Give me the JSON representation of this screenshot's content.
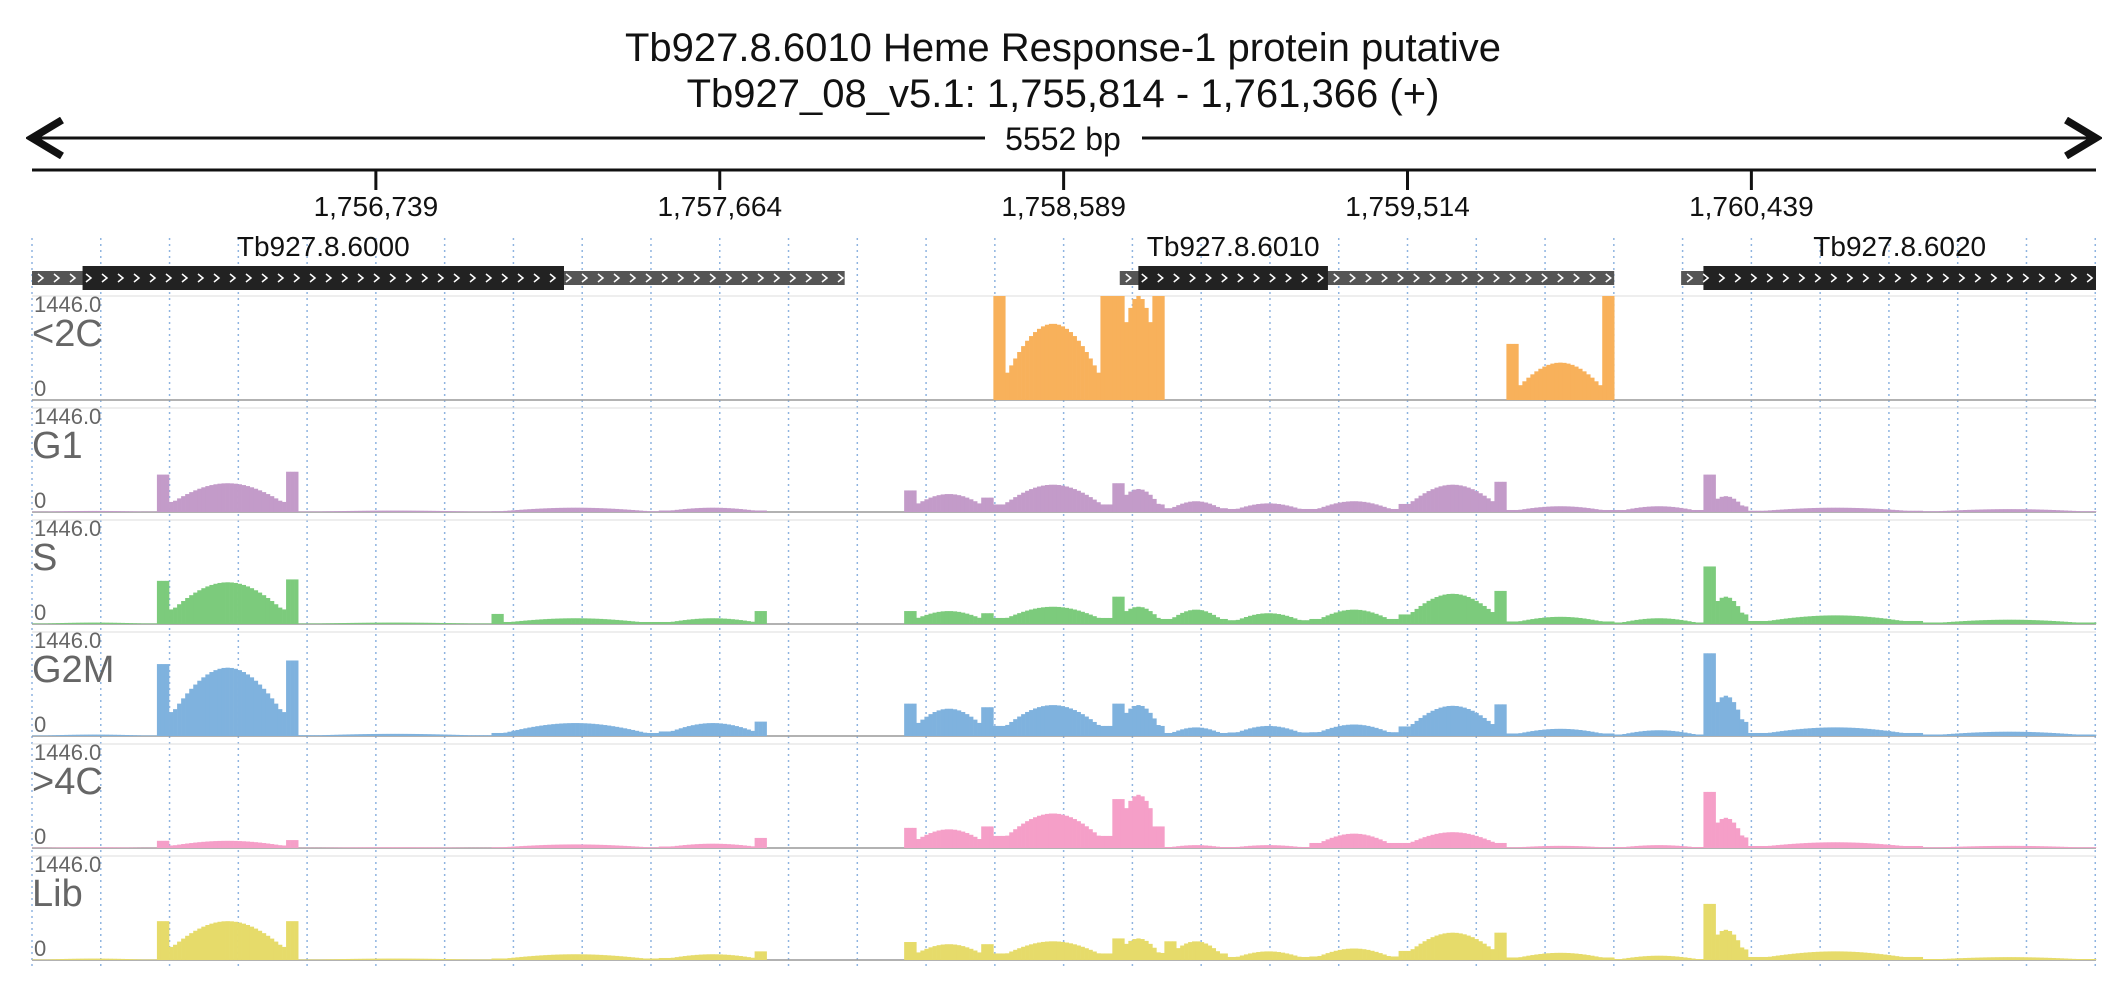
{
  "header": {
    "title_line1": "Tb927.8.6010  Heme Response-1 protein  putative",
    "title_line2": "Tb927_08_v5.1: 1,755,814 - 1,761,366 (+)",
    "span_label": "5552 bp"
  },
  "colors": {
    "axis": "#111111",
    "grid": "#8fb4e0",
    "gene_exon": "#222222",
    "gene_utr": "#555555",
    "track_label": "#666666"
  },
  "ruler": {
    "range_bp": [
      1755814,
      1761366
    ],
    "ticks": [
      {
        "pos": 1756739,
        "label": "1,756,739"
      },
      {
        "pos": 1757664,
        "label": "1,757,664"
      },
      {
        "pos": 1758589,
        "label": "1,758,589"
      },
      {
        "pos": 1759514,
        "label": "1,759,514"
      },
      {
        "pos": 1760439,
        "label": "1,760,439"
      }
    ]
  },
  "genes": [
    {
      "name": "Tb927.8.6000",
      "utr_start": 1755814,
      "cds_start": 1755950,
      "cds_end": 1757245,
      "utr_end": 1758000
    },
    {
      "name": "Tb927.8.6010",
      "utr_start": 1758740,
      "cds_start": 1758790,
      "cds_end": 1759300,
      "utr_end": 1760070
    },
    {
      "name": "Tb927.8.6020",
      "utr_start": 1760250,
      "cds_start": 1760310,
      "cds_end": 1761366,
      "utr_end": 1761366
    }
  ],
  "chart_data": {
    "type": "area",
    "x_range": [
      1755814,
      1761366
    ],
    "ylim": [
      0,
      1446.0
    ],
    "y_max_label": "1446.0",
    "y_min_label": "0",
    "segments": [
      [
        1755814,
        1756150
      ],
      [
        1756150,
        1756530
      ],
      [
        1756530,
        1757050
      ],
      [
        1757050,
        1757500
      ],
      [
        1757500,
        1757790
      ],
      [
        1757790,
        1758160
      ],
      [
        1758160,
        1758400
      ],
      [
        1758400,
        1758720
      ],
      [
        1758720,
        1758860
      ],
      [
        1758860,
        1759030
      ],
      [
        1759030,
        1759250
      ],
      [
        1759250,
        1759490
      ],
      [
        1759490,
        1759780
      ],
      [
        1759780,
        1760070
      ],
      [
        1760070,
        1760310
      ],
      [
        1760310,
        1760430
      ],
      [
        1760430,
        1760900
      ],
      [
        1760900,
        1761366
      ]
    ],
    "series": [
      {
        "name": "<2C",
        "color": "#f8b15b",
        "values": [
          0,
          0,
          0,
          0,
          0,
          0,
          0,
          1446,
          1446,
          0,
          0,
          0,
          0,
          0,
          0,
          0,
          0,
          0
        ],
        "peaks": [
          0,
          0,
          0,
          0,
          0,
          0,
          0,
          1060,
          1446,
          0,
          0,
          0,
          0,
          520,
          0,
          0,
          0,
          0
        ],
        "edges": [
          [
            0,
            0
          ],
          [
            0,
            0
          ],
          [
            0,
            0
          ],
          [
            0,
            0
          ],
          [
            0,
            0
          ],
          [
            0,
            0
          ],
          [
            0,
            0
          ],
          [
            1446,
            1446
          ],
          [
            1446,
            1446
          ],
          [
            0,
            0
          ],
          [
            0,
            0
          ],
          [
            0,
            0
          ],
          [
            0,
            0
          ],
          [
            780,
            1446
          ],
          [
            0,
            0
          ],
          [
            0,
            0
          ],
          [
            0,
            0
          ],
          [
            0,
            0
          ]
        ]
      },
      {
        "name": "G1",
        "color": "#c39bc9",
        "values": [
          15,
          480,
          20,
          30,
          180,
          0,
          280,
          300,
          300,
          150,
          180,
          120,
          320,
          110,
          90,
          500,
          50,
          30
        ],
        "peaks": [
          15,
          400,
          20,
          60,
          60,
          0,
          250,
          380,
          320,
          150,
          120,
          150,
          380,
          80,
          80,
          220,
          60,
          40
        ],
        "edges": [
          [
            0,
            0
          ],
          [
            520,
            560
          ],
          [
            0,
            0
          ],
          [
            0,
            0
          ],
          [
            0,
            0
          ],
          [
            0,
            0
          ],
          [
            300,
            200
          ],
          [
            0,
            0
          ],
          [
            400,
            0
          ],
          [
            0,
            0
          ],
          [
            0,
            0
          ],
          [
            0,
            0
          ],
          [
            0,
            420
          ],
          [
            0,
            0
          ],
          [
            0,
            0
          ],
          [
            520,
            0
          ],
          [
            0,
            0
          ],
          [
            0,
            0
          ]
        ]
      },
      {
        "name": "S",
        "color": "#7ccb7c",
        "values": [
          20,
          600,
          20,
          80,
          180,
          0,
          200,
          250,
          200,
          200,
          150,
          200,
          380,
          120,
          60,
          800,
          120,
          60
        ],
        "peaks": [
          20,
          580,
          20,
          80,
          80,
          0,
          180,
          240,
          240,
          200,
          150,
          200,
          420,
          100,
          80,
          380,
          120,
          60
        ],
        "edges": [
          [
            0,
            0
          ],
          [
            600,
            620
          ],
          [
            0,
            0
          ],
          [
            140,
            0
          ],
          [
            0,
            180
          ],
          [
            0,
            0
          ],
          [
            180,
            150
          ],
          [
            0,
            0
          ],
          [
            380,
            0
          ],
          [
            0,
            0
          ],
          [
            0,
            0
          ],
          [
            0,
            0
          ],
          [
            0,
            460
          ],
          [
            0,
            0
          ],
          [
            0,
            0
          ],
          [
            800,
            0
          ],
          [
            0,
            0
          ],
          [
            0,
            0
          ]
        ]
      },
      {
        "name": "G2M",
        "color": "#7fb2de",
        "values": [
          20,
          980,
          30,
          120,
          180,
          0,
          450,
          400,
          400,
          120,
          140,
          150,
          380,
          100,
          60,
          1100,
          120,
          60
        ],
        "peaks": [
          20,
          950,
          30,
          180,
          180,
          0,
          380,
          430,
          430,
          120,
          140,
          160,
          420,
          100,
          80,
          560,
          120,
          60
        ],
        "edges": [
          [
            0,
            0
          ],
          [
            1000,
            1050
          ],
          [
            0,
            0
          ],
          [
            0,
            0
          ],
          [
            0,
            200
          ],
          [
            0,
            0
          ],
          [
            450,
            400
          ],
          [
            0,
            0
          ],
          [
            450,
            0
          ],
          [
            0,
            0
          ],
          [
            0,
            0
          ],
          [
            0,
            0
          ],
          [
            0,
            440
          ],
          [
            0,
            0
          ],
          [
            0,
            0
          ],
          [
            1150,
            0
          ],
          [
            0,
            0
          ],
          [
            0,
            0
          ]
        ]
      },
      {
        "name": ">4C",
        "color": "#f59fc8",
        "values": [
          10,
          100,
          10,
          30,
          120,
          0,
          280,
          500,
          700,
          40,
          40,
          220,
          200,
          30,
          40,
          760,
          80,
          30
        ],
        "peaks": [
          10,
          100,
          10,
          50,
          60,
          0,
          260,
          480,
          740,
          40,
          40,
          200,
          220,
          30,
          40,
          420,
          80,
          30
        ],
        "edges": [
          [
            0,
            0
          ],
          [
            100,
            110
          ],
          [
            0,
            0
          ],
          [
            0,
            0
          ],
          [
            0,
            140
          ],
          [
            0,
            0
          ],
          [
            280,
            300
          ],
          [
            0,
            0
          ],
          [
            680,
            300
          ],
          [
            0,
            0
          ],
          [
            0,
            0
          ],
          [
            0,
            0
          ],
          [
            0,
            0
          ],
          [
            0,
            0
          ],
          [
            0,
            0
          ],
          [
            780,
            0
          ],
          [
            0,
            0
          ],
          [
            0,
            0
          ]
        ]
      },
      {
        "name": "Lib",
        "color": "#e6db6a",
        "values": [
          20,
          520,
          20,
          60,
          120,
          0,
          250,
          280,
          280,
          260,
          120,
          140,
          360,
          100,
          40,
          760,
          120,
          40
        ],
        "peaks": [
          20,
          540,
          20,
          80,
          80,
          0,
          220,
          260,
          300,
          260,
          120,
          160,
          380,
          100,
          60,
          420,
          120,
          40
        ],
        "edges": [
          [
            0,
            0
          ],
          [
            540,
            540
          ],
          [
            0,
            0
          ],
          [
            0,
            0
          ],
          [
            0,
            120
          ],
          [
            0,
            0
          ],
          [
            250,
            220
          ],
          [
            0,
            0
          ],
          [
            300,
            0
          ],
          [
            260,
            0
          ],
          [
            0,
            0
          ],
          [
            0,
            0
          ],
          [
            0,
            380
          ],
          [
            0,
            0
          ],
          [
            0,
            0
          ],
          [
            780,
            0
          ],
          [
            0,
            0
          ],
          [
            0,
            0
          ]
        ]
      }
    ]
  }
}
